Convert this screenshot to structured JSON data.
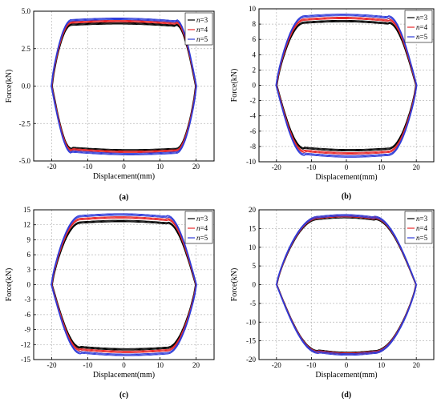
{
  "chart_data": [
    {
      "type": "line",
      "panel_label": "(a)",
      "xlabel": "Displacement(mm)",
      "ylabel": "Force(kN)",
      "xlim": [
        -25,
        25
      ],
      "ylim": [
        -5.0,
        5.0
      ],
      "xticks": [
        "-20",
        "-10",
        "0",
        "10",
        "20"
      ],
      "xtick_values": [
        -20,
        -10,
        0,
        10,
        20
      ],
      "yticks": [
        "-5.0",
        "-2.5",
        "0.0",
        "2.5",
        "5.0"
      ],
      "ytick_values": [
        -5.0,
        -2.5,
        0.0,
        2.5,
        5.0
      ],
      "grid": true,
      "legend_position": "top-right",
      "series": [
        {
          "name": "n=3",
          "color": "#000000",
          "amp": 20,
          "top": 4.15,
          "bottom": 4.25,
          "ramp_start": 14.5,
          "skew": 0.45
        },
        {
          "name": "n=4",
          "color": "#e8282a",
          "amp": 20.1,
          "top": 4.3,
          "bottom": 4.35,
          "ramp_start": 14.5,
          "skew": 0.45
        },
        {
          "name": "n=5",
          "color": "#2f3bd8",
          "amp": 20.2,
          "top": 4.45,
          "bottom": 4.5,
          "ramp_start": 14.5,
          "skew": 0.45
        }
      ]
    },
    {
      "type": "line",
      "panel_label": "(b)",
      "xlabel": "Displacement(mm)",
      "ylabel": "Force(kN)",
      "xlim": [
        -25,
        25
      ],
      "ylim": [
        -10,
        10
      ],
      "xticks": [
        "-20",
        "-10",
        "0",
        "10",
        "20"
      ],
      "xtick_values": [
        -20,
        -10,
        0,
        10,
        20
      ],
      "yticks": [
        "-10",
        "-8",
        "-6",
        "-4",
        "-2",
        "0",
        "2",
        "4",
        "6",
        "8",
        "10"
      ],
      "ytick_values": [
        -10,
        -8,
        -6,
        -4,
        -2,
        0,
        2,
        4,
        6,
        8,
        10
      ],
      "grid": true,
      "legend_position": "top-right",
      "series": [
        {
          "name": "n=3",
          "color": "#000000",
          "amp": 20,
          "top": 8.3,
          "bottom": 8.4,
          "ramp_start": 12,
          "skew": 0.35
        },
        {
          "name": "n=4",
          "color": "#e8282a",
          "amp": 20.1,
          "top": 8.7,
          "bottom": 8.8,
          "ramp_start": 12,
          "skew": 0.35
        },
        {
          "name": "n=5",
          "color": "#2f3bd8",
          "amp": 20.2,
          "top": 9.1,
          "bottom": 9.2,
          "ramp_start": 12,
          "skew": 0.35
        }
      ]
    },
    {
      "type": "line",
      "panel_label": "(c)",
      "xlabel": "Displacement(mm)",
      "ylabel": "Force(kN)",
      "xlim": [
        -25,
        25
      ],
      "ylim": [
        -15,
        15
      ],
      "xticks": [
        "-20",
        "-10",
        "0",
        "10",
        "20"
      ],
      "xtick_values": [
        -20,
        -10,
        0,
        10,
        20
      ],
      "yticks": [
        "-15",
        "-12",
        "-9",
        "-6",
        "-3",
        "0",
        "3",
        "6",
        "9",
        "12",
        "15"
      ],
      "ytick_values": [
        -15,
        -12,
        -9,
        -6,
        -3,
        0,
        3,
        6,
        9,
        12,
        15
      ],
      "grid": true,
      "legend_position": "top-right",
      "series": [
        {
          "name": "n=3",
          "color": "#000000",
          "amp": 20,
          "top": 12.6,
          "bottom": 12.8,
          "ramp_start": 12,
          "skew": 0.3
        },
        {
          "name": "n=4",
          "color": "#e8282a",
          "amp": 20.1,
          "top": 13.3,
          "bottom": 13.3,
          "ramp_start": 12,
          "skew": 0.3
        },
        {
          "name": "n=5",
          "color": "#2f3bd8",
          "amp": 20.2,
          "top": 13.9,
          "bottom": 13.9,
          "ramp_start": 12,
          "skew": 0.3
        }
      ]
    },
    {
      "type": "line",
      "panel_label": "(d)",
      "xlabel": "Displacement(mm)",
      "ylabel": "Force(kN)",
      "xlim": [
        -25,
        25
      ],
      "ylim": [
        -20,
        20
      ],
      "xticks": [
        "-20",
        "-10",
        "0",
        "10",
        "20"
      ],
      "xtick_values": [
        -20,
        -10,
        0,
        10,
        20
      ],
      "yticks": [
        "-20",
        "-15",
        "-10",
        "-5",
        "0",
        "5",
        "10",
        "15",
        "20"
      ],
      "ytick_values": [
        -20,
        -15,
        -10,
        -5,
        0,
        5,
        10,
        15,
        20
      ],
      "grid": true,
      "legend_position": "top-right",
      "series": [
        {
          "name": "n=3",
          "color": "#000000",
          "amp": 20,
          "top": 17.8,
          "bottom": 18.0,
          "ramp_start": 8,
          "skew": 0.25
        },
        {
          "name": "n=4",
          "color": "#e8282a",
          "amp": 20.05,
          "top": 18.1,
          "bottom": 18.2,
          "ramp_start": 8,
          "skew": 0.25
        },
        {
          "name": "n=5",
          "color": "#2f3bd8",
          "amp": 20.1,
          "top": 18.3,
          "bottom": 18.4,
          "ramp_start": 8,
          "skew": 0.25
        }
      ]
    }
  ]
}
